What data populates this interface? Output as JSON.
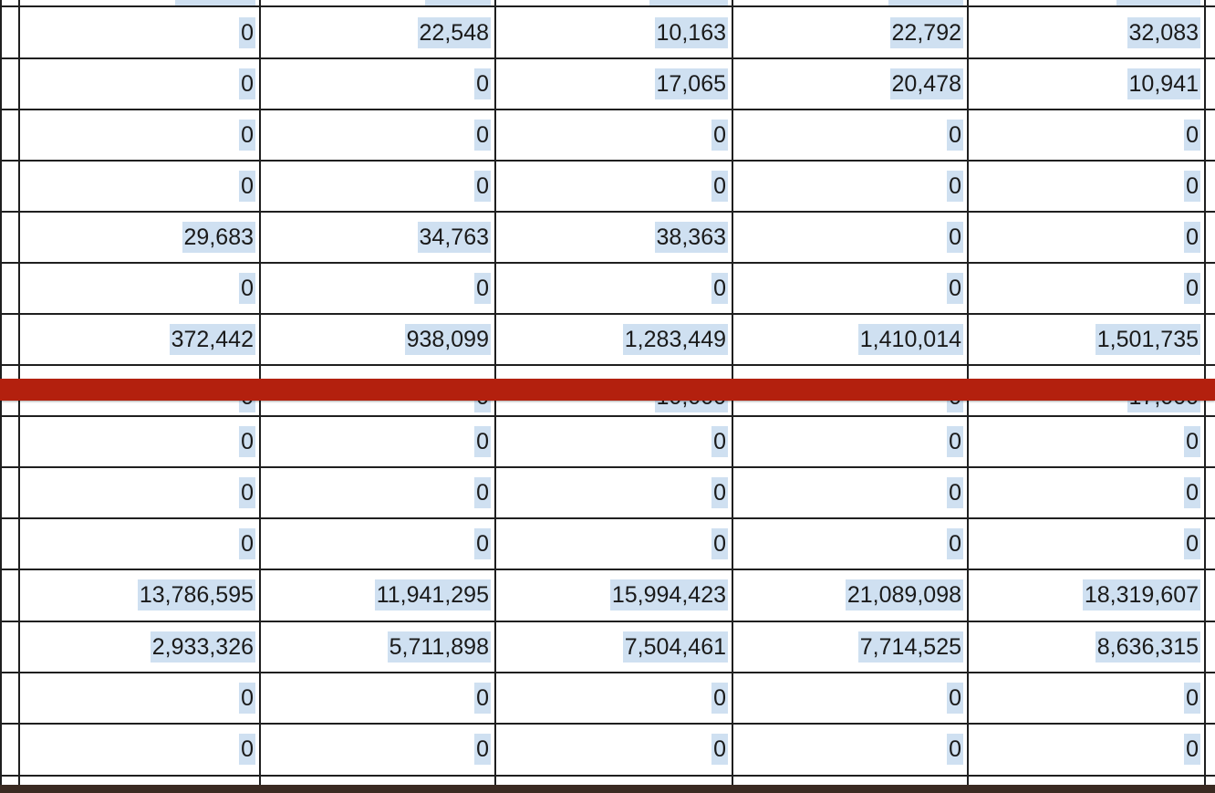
{
  "table": {
    "rows_upper": [
      [
        "0",
        "22,548",
        "10,163",
        "22,792",
        "32,083"
      ],
      [
        "0",
        "0",
        "17,065",
        "20,478",
        "10,941"
      ],
      [
        "0",
        "0",
        "0",
        "0",
        "0"
      ],
      [
        "0",
        "0",
        "0",
        "0",
        "0"
      ],
      [
        "29,683",
        "34,763",
        "38,363",
        "0",
        "0"
      ],
      [
        "0",
        "0",
        "0",
        "0",
        "0"
      ],
      [
        "372,442",
        "938,099",
        "1,283,449",
        "1,410,014",
        "1,501,735"
      ]
    ],
    "partially_hidden_row": [
      "0",
      "0",
      "10,000",
      "0",
      "17,000"
    ],
    "rows_lower": [
      [
        "0",
        "0",
        "0",
        "0",
        "0"
      ],
      [
        "0",
        "0",
        "0",
        "0",
        "0"
      ],
      [
        "0",
        "0",
        "0",
        "0",
        "0"
      ],
      [
        "13,786,595",
        "11,941,295",
        "15,994,423",
        "21,089,098",
        "18,319,607"
      ],
      [
        "2,933,326",
        "5,711,898",
        "7,504,461",
        "7,714,525",
        "8,636,315"
      ],
      [
        "0",
        "0",
        "0",
        "0",
        "0"
      ],
      [
        "0",
        "0",
        "0",
        "0",
        "0"
      ]
    ]
  },
  "colors": {
    "cell_highlight": "#cfe0f1",
    "redaction_bar": "#b3200e",
    "grid_line": "#1f1f1f"
  }
}
